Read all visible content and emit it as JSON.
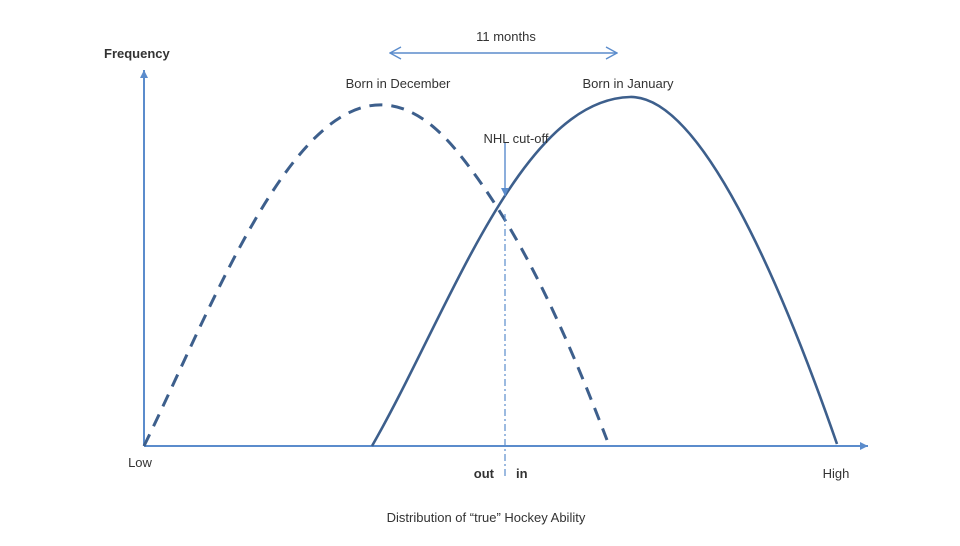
{
  "y_axis_label": "Frequency",
  "x_axis_low": "Low",
  "x_axis_high": "High",
  "x_axis_title": "Distribution of “true” Hockey Ability",
  "span_label": "11 months",
  "curve_december_label": "Born in December",
  "curve_january_label": "Born in January",
  "cutoff_label": "NHL cut-off",
  "out_label": "out",
  "in_label": "in",
  "colors": {
    "axis": "#5b8ccc",
    "curve": "#3d5f8c",
    "text": "#333333"
  }
}
